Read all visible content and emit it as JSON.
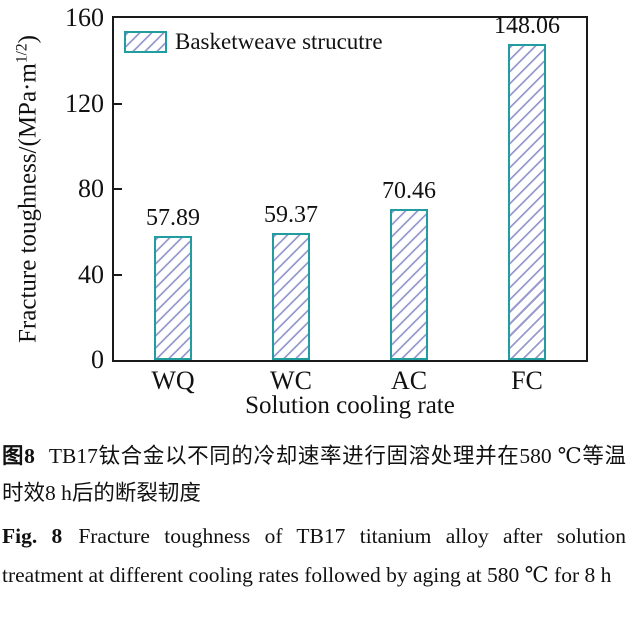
{
  "chart_data": {
    "type": "bar",
    "categories": [
      "WQ",
      "WC",
      "AC",
      "FC"
    ],
    "values": [
      57.89,
      59.37,
      70.46,
      148.06
    ],
    "value_labels": [
      "57.89",
      "59.37",
      "70.46",
      "148.06"
    ],
    "xlabel": "Solution cooling rate",
    "ylabel_prefix": "Fracture toughness/(MPa·m",
    "ylabel_sup": "1/2",
    "ylabel_suffix": ")",
    "ylim": [
      0,
      160
    ],
    "yticks": [
      0,
      40,
      80,
      120,
      160
    ],
    "grid": false,
    "legend": {
      "label": "Basketweave strucutre",
      "position": "upper-left"
    },
    "bar_border_color": "#229d9f",
    "hatch_color": "#989cce",
    "hatch_style": "/",
    "frame_color": "#1a1a1a"
  },
  "caption_zh": {
    "prefix": "图8",
    "text": "TB17钛合金以不同的冷却速率进行固溶处理并在580 ℃等温时效8 h后的断裂韧度"
  },
  "caption_en": {
    "prefix": "Fig. 8",
    "text": "Fracture toughness of TB17 titanium alloy after solution treatment at different cooling rates followed by aging at 580 ℃ for 8 h"
  }
}
